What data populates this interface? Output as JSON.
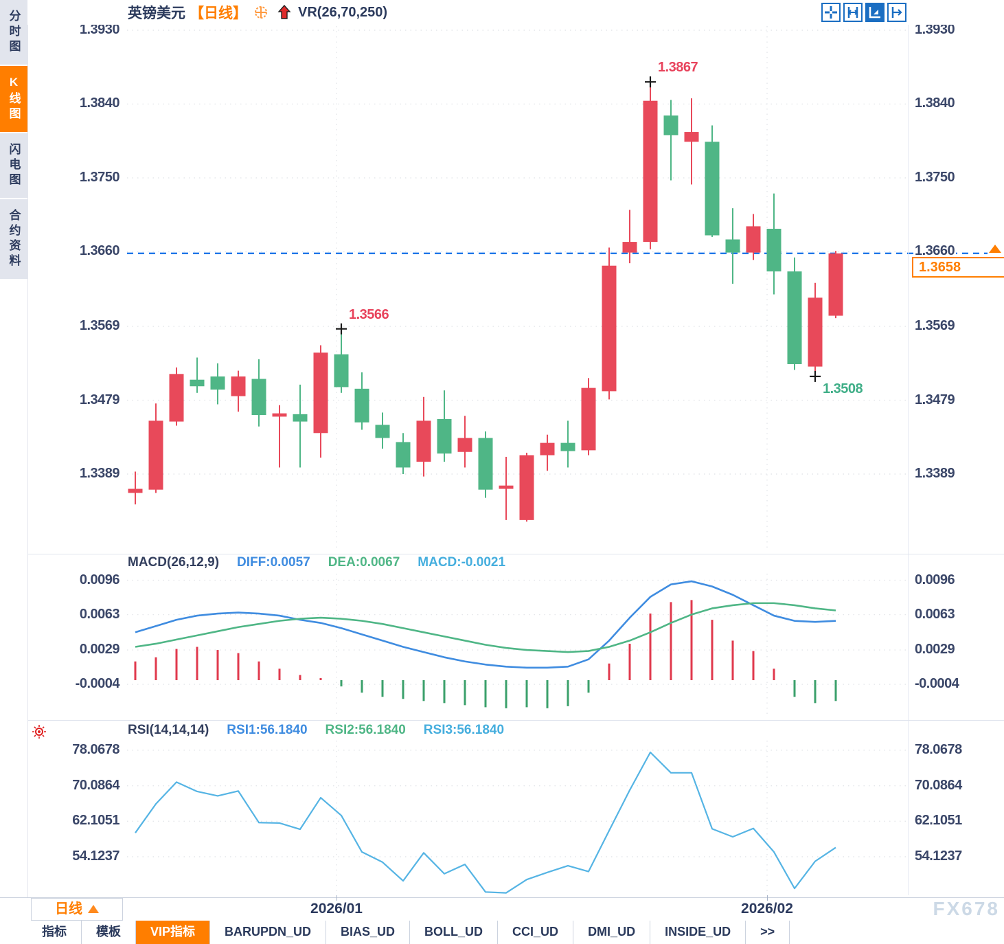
{
  "sidebar": {
    "items": [
      {
        "label": "分时图",
        "active": false
      },
      {
        "label": "K线图",
        "active": true
      },
      {
        "label": "闪电图",
        "active": false
      },
      {
        "label": "合约资料",
        "active": false
      }
    ]
  },
  "header": {
    "symbol": "英镑美元",
    "period_tag": "【日线】",
    "indicator_label": "VR(26,70,250)",
    "toolbar_icons": [
      "crosshair-icon",
      "axis-range-icon",
      "auto-scale-icon",
      "pan-right-icon"
    ]
  },
  "main_panel": {
    "price_axis_labels": [
      "1.3930",
      "1.3840",
      "1.3750",
      "1.3660",
      "1.3569",
      "1.3479",
      "1.3389"
    ]
  },
  "macd_panel": {
    "title": "MACD(26,12,9)",
    "diff_label": "DIFF:0.0057",
    "dea_label": "DEA:0.0067",
    "macd_label": "MACD:-0.0021",
    "axis_labels": [
      "0.0096",
      "0.0063",
      "0.0029",
      "-0.0004"
    ]
  },
  "rsi_panel": {
    "title": "RSI(14,14,14)",
    "rsi1_label": "RSI1:56.1840",
    "rsi2_label": "RSI2:56.1840",
    "rsi3_label": "RSI3:56.1840",
    "axis_labels": [
      "78.0678",
      "70.0864",
      "62.1051",
      "54.1237"
    ]
  },
  "current_price": {
    "value": "1.3658"
  },
  "annotations": [
    {
      "text": "1.3867",
      "type": "swing-high",
      "candle": 26
    },
    {
      "text": "1.3566",
      "type": "swing-high",
      "candle": 11
    },
    {
      "text": "1.3508",
      "type": "swing-low",
      "candle": 34
    }
  ],
  "timeline": {
    "period_label": "日线",
    "dates": [
      "2026/01",
      "2026/02"
    ]
  },
  "watermark": "FX678",
  "tabs": [
    {
      "label": "指标",
      "active": false
    },
    {
      "label": "模板",
      "active": false
    },
    {
      "label": "VIP指标",
      "active": true
    },
    {
      "label": "BARUPDN_UD",
      "active": false
    },
    {
      "label": "BIAS_UD",
      "active": false
    },
    {
      "label": "BOLL_UD",
      "active": false
    },
    {
      "label": "CCI_UD",
      "active": false
    },
    {
      "label": "DMI_UD",
      "active": false
    },
    {
      "label": "INSIDE_UD",
      "active": false
    },
    {
      "label": ">>",
      "active": false
    }
  ],
  "colors": {
    "up": "#e8495a",
    "down": "#4fb686",
    "diff_line": "#3f8ce0",
    "dea_line": "#4fb686",
    "rsi_line": "#55b4e4",
    "dashed_line": "#1d76e8",
    "grid": "#e4e6ea",
    "accent_orange": "#ff7e00",
    "annotation_high": "#e8435c",
    "annotation_low": "#3fae87",
    "marker": "#1a1a1a"
  },
  "chart_data": [
    {
      "type": "candlestick",
      "title": "英镑美元 日线",
      "x_dates": [
        "2026/01",
        "2026/02"
      ],
      "ylim": [
        1.3389,
        1.393
      ],
      "yticks": [
        1.393,
        1.384,
        1.375,
        1.366,
        1.3569,
        1.3479,
        1.3389
      ],
      "last_price": 1.3658,
      "marked_high": 1.3867,
      "swing_high": 1.3566,
      "marked_low": 1.3508,
      "candles": [
        {
          "o": 1.3366,
          "h": 1.3392,
          "l": 1.3352,
          "c": 1.3371
        },
        {
          "o": 1.337,
          "h": 1.3475,
          "l": 1.3366,
          "c": 1.3454
        },
        {
          "o": 1.3453,
          "h": 1.3519,
          "l": 1.3448,
          "c": 1.3511
        },
        {
          "o": 1.3504,
          "h": 1.3531,
          "l": 1.3488,
          "c": 1.3496
        },
        {
          "o": 1.3508,
          "h": 1.3524,
          "l": 1.3474,
          "c": 1.3492
        },
        {
          "o": 1.3484,
          "h": 1.3515,
          "l": 1.3465,
          "c": 1.3508
        },
        {
          "o": 1.3505,
          "h": 1.3529,
          "l": 1.3447,
          "c": 1.3461
        },
        {
          "o": 1.3459,
          "h": 1.3473,
          "l": 1.3397,
          "c": 1.3463
        },
        {
          "o": 1.3462,
          "h": 1.3498,
          "l": 1.3397,
          "c": 1.3453
        },
        {
          "o": 1.3439,
          "h": 1.3546,
          "l": 1.3409,
          "c": 1.3537
        },
        {
          "o": 1.3535,
          "h": 1.3566,
          "l": 1.3488,
          "c": 1.3495
        },
        {
          "o": 1.3493,
          "h": 1.3513,
          "l": 1.3443,
          "c": 1.3452
        },
        {
          "o": 1.3449,
          "h": 1.3464,
          "l": 1.342,
          "c": 1.3433
        },
        {
          "o": 1.3428,
          "h": 1.3439,
          "l": 1.3389,
          "c": 1.3397
        },
        {
          "o": 1.3404,
          "h": 1.3483,
          "l": 1.3386,
          "c": 1.3454
        },
        {
          "o": 1.3456,
          "h": 1.3491,
          "l": 1.3404,
          "c": 1.3414
        },
        {
          "o": 1.3416,
          "h": 1.346,
          "l": 1.3397,
          "c": 1.3433
        },
        {
          "o": 1.3433,
          "h": 1.3441,
          "l": 1.336,
          "c": 1.337
        },
        {
          "o": 1.3371,
          "h": 1.341,
          "l": 1.3333,
          "c": 1.3375
        },
        {
          "o": 1.3333,
          "h": 1.3415,
          "l": 1.3331,
          "c": 1.3412
        },
        {
          "o": 1.3412,
          "h": 1.3437,
          "l": 1.3393,
          "c": 1.3427
        },
        {
          "o": 1.3427,
          "h": 1.3454,
          "l": 1.3397,
          "c": 1.3417
        },
        {
          "o": 1.3418,
          "h": 1.3506,
          "l": 1.3412,
          "c": 1.3494
        },
        {
          "o": 1.349,
          "h": 1.3665,
          "l": 1.348,
          "c": 1.3643
        },
        {
          "o": 1.3659,
          "h": 1.3711,
          "l": 1.3646,
          "c": 1.3672
        },
        {
          "o": 1.3672,
          "h": 1.3867,
          "l": 1.3663,
          "c": 1.3844
        },
        {
          "o": 1.3826,
          "h": 1.3845,
          "l": 1.3747,
          "c": 1.3802
        },
        {
          "o": 1.3794,
          "h": 1.3847,
          "l": 1.3742,
          "c": 1.3806
        },
        {
          "o": 1.3794,
          "h": 1.3814,
          "l": 1.3678,
          "c": 1.368
        },
        {
          "o": 1.3675,
          "h": 1.3713,
          "l": 1.3621,
          "c": 1.3659
        },
        {
          "o": 1.3659,
          "h": 1.3706,
          "l": 1.365,
          "c": 1.3691
        },
        {
          "o": 1.3688,
          "h": 1.3731,
          "l": 1.3608,
          "c": 1.3636
        },
        {
          "o": 1.3636,
          "h": 1.3653,
          "l": 1.3516,
          "c": 1.3523
        },
        {
          "o": 1.352,
          "h": 1.3622,
          "l": 1.3508,
          "c": 1.3604
        },
        {
          "o": 1.3582,
          "h": 1.3661,
          "l": 1.3579,
          "c": 1.3658
        }
      ]
    },
    {
      "type": "bar+line",
      "title": "MACD(26,12,9)",
      "diff_current": 0.0057,
      "dea_current": 0.0067,
      "macd_current": -0.0021,
      "yticks": [
        0.0096,
        0.0063,
        0.0029,
        -0.0004
      ],
      "histogram": [
        0.0018,
        0.0022,
        0.003,
        0.0032,
        0.0029,
        0.0026,
        0.0018,
        0.0011,
        0.0005,
        0.0002,
        -0.0006,
        -0.0012,
        -0.0016,
        -0.0018,
        -0.002,
        -0.0022,
        -0.0024,
        -0.0026,
        -0.0027,
        -0.0026,
        -0.0027,
        -0.0025,
        -0.0012,
        0.0016,
        0.0035,
        0.0064,
        0.0075,
        0.0077,
        0.0058,
        0.0038,
        0.0028,
        0.0011,
        -0.0016,
        -0.0022,
        -0.002
      ],
      "diff_line": [
        0.0046,
        0.0052,
        0.0058,
        0.0062,
        0.0064,
        0.0065,
        0.0064,
        0.0062,
        0.0058,
        0.0055,
        0.005,
        0.0044,
        0.0038,
        0.0032,
        0.0027,
        0.0022,
        0.0018,
        0.0015,
        0.0013,
        0.0012,
        0.0012,
        0.0013,
        0.002,
        0.0038,
        0.006,
        0.008,
        0.0092,
        0.0095,
        0.009,
        0.0082,
        0.0072,
        0.0062,
        0.0057,
        0.0056,
        0.0057
      ],
      "dea_line": [
        0.0032,
        0.0035,
        0.0039,
        0.0043,
        0.0047,
        0.0051,
        0.0054,
        0.0057,
        0.0059,
        0.006,
        0.0059,
        0.0057,
        0.0054,
        0.005,
        0.0046,
        0.0042,
        0.0038,
        0.0034,
        0.0031,
        0.0029,
        0.0028,
        0.0027,
        0.0028,
        0.0032,
        0.0038,
        0.0046,
        0.0055,
        0.0063,
        0.0069,
        0.0072,
        0.0074,
        0.0074,
        0.0072,
        0.0069,
        0.0067
      ]
    },
    {
      "type": "line",
      "title": "RSI(14,14,14)",
      "current": 56.184,
      "yticks": [
        78.0678,
        70.0864,
        62.1051,
        54.1237
      ],
      "values": [
        59.5,
        66.0,
        70.9,
        68.8,
        67.8,
        68.9,
        61.8,
        61.7,
        60.3,
        67.4,
        63.4,
        55.2,
        52.9,
        48.7,
        55.0,
        50.3,
        52.4,
        46.2,
        46.0,
        49.0,
        50.6,
        52.1,
        50.8,
        60.0,
        69.1,
        77.6,
        73.0,
        73.0,
        60.4,
        58.6,
        60.5,
        55.2,
        47.0,
        53.1,
        56.2
      ]
    }
  ]
}
